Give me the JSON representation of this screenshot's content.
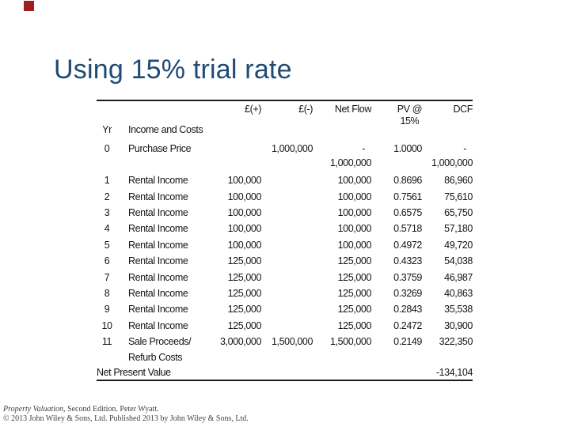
{
  "slide": {
    "title": "Using 15% trial rate",
    "title_color": "#1F4A75",
    "marker_color": "#A01D1D"
  },
  "table": {
    "headers": {
      "yr": "Yr",
      "income_costs": "Income and Costs",
      "inflow": "£(+)",
      "outflow": "£(-)",
      "net_flow": "Net Flow",
      "pv_line1": "PV @",
      "pv_line2": "15%",
      "dcf": "DCF"
    },
    "rows": [
      {
        "yr": "0",
        "desc": "Purchase Price",
        "inflow": "",
        "outflow": "1,000,000",
        "net_l1": "-",
        "net_l2": "1,000,000",
        "pv": "1.0000",
        "dcf_l1": "-",
        "dcf_l2": "1,000,000"
      },
      {
        "yr": "1",
        "desc": "Rental Income",
        "inflow": "100,000",
        "outflow": "",
        "net": "100,000",
        "pv": "0.8696",
        "dcf": "86,960"
      },
      {
        "yr": "2",
        "desc": "Rental Income",
        "inflow": "100,000",
        "outflow": "",
        "net": "100,000",
        "pv": "0.7561",
        "dcf": "75,610"
      },
      {
        "yr": "3",
        "desc": "Rental Income",
        "inflow": "100,000",
        "outflow": "",
        "net": "100,000",
        "pv": "0.6575",
        "dcf": "65,750"
      },
      {
        "yr": "4",
        "desc": "Rental Income",
        "inflow": "100,000",
        "outflow": "",
        "net": "100,000",
        "pv": "0.5718",
        "dcf": "57,180"
      },
      {
        "yr": "5",
        "desc": "Rental Income",
        "inflow": "100,000",
        "outflow": "",
        "net": "100,000",
        "pv": "0.4972",
        "dcf": "49,720"
      },
      {
        "yr": "6",
        "desc": "Rental Income",
        "inflow": "125,000",
        "outflow": "",
        "net": "125,000",
        "pv": "0.4323",
        "dcf": "54,038"
      },
      {
        "yr": "7",
        "desc": "Rental Income",
        "inflow": "125,000",
        "outflow": "",
        "net": "125,000",
        "pv": "0.3759",
        "dcf": "46,987"
      },
      {
        "yr": "8",
        "desc": "Rental Income",
        "inflow": "125,000",
        "outflow": "",
        "net": "125,000",
        "pv": "0.3269",
        "dcf": "40,863"
      },
      {
        "yr": "9",
        "desc": "Rental Income",
        "inflow": "125,000",
        "outflow": "",
        "net": "125,000",
        "pv": "0.2843",
        "dcf": "35,538"
      },
      {
        "yr": "10",
        "desc": "Rental Income",
        "inflow": "125,000",
        "outflow": "",
        "net": "125,000",
        "pv": "0.2472",
        "dcf": "30,900"
      },
      {
        "yr": "11",
        "desc_l1": "Sale Proceeds/",
        "desc_l2": "Refurb Costs",
        "inflow": "3,000,000",
        "outflow": "1,500,000",
        "net": "1,500,000",
        "pv": "0.2149",
        "dcf": "322,350"
      }
    ],
    "footer_row": {
      "label": "Net Present Value",
      "value": "-134,104"
    }
  },
  "footnote": {
    "line1_italic": "Property Valuation",
    "line1_rest": ", Second Edition. Peter Wyatt.",
    "line2": "© 2013 John Wiley & Sons, Ltd. Published 2013 by John Wiley & Sons, Ltd."
  }
}
